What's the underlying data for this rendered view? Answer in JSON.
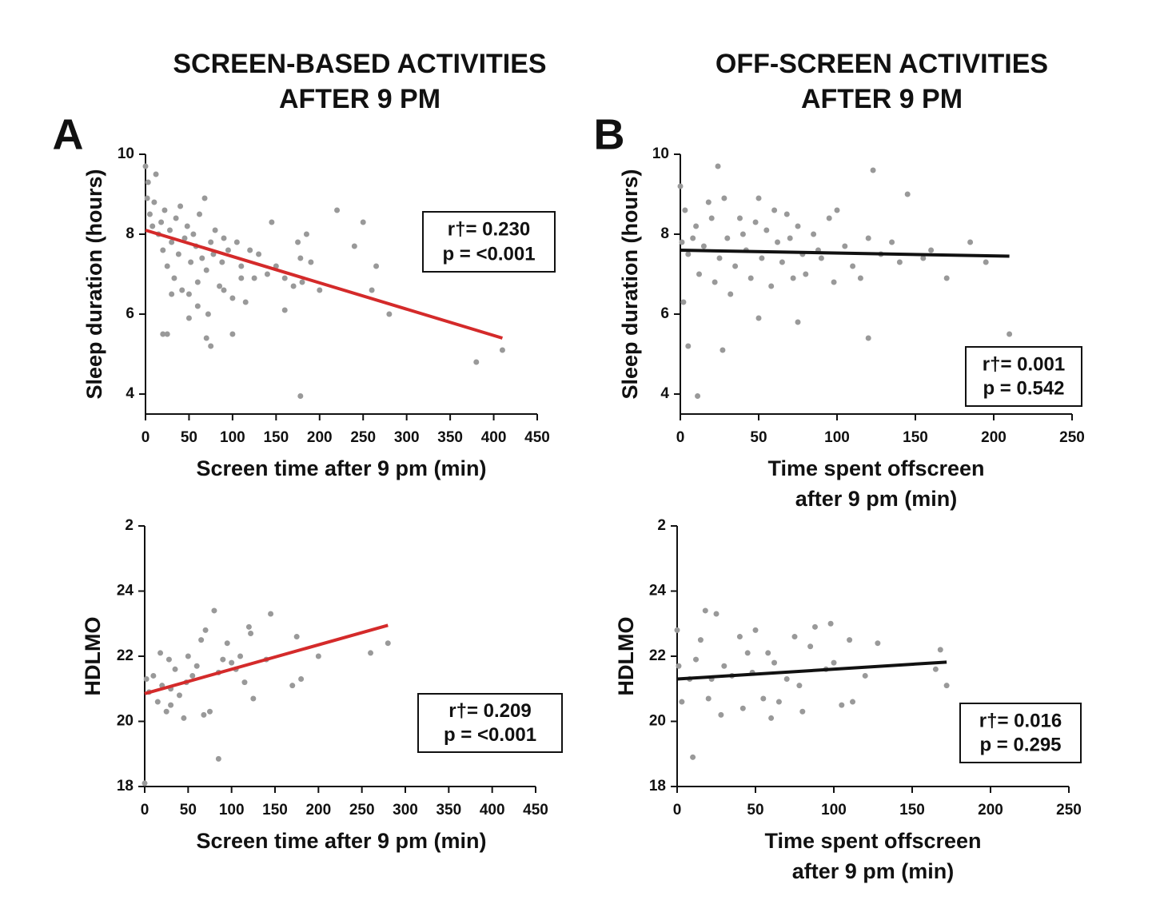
{
  "chart_data": [
    {
      "type": "scatter",
      "panel": "A",
      "title": [
        "SCREEN-BASED ACTIVITIES",
        "AFTER 9 PM"
      ],
      "xlabel": [
        "Screen time after 9 pm (min)"
      ],
      "ylabel": "Sleep duration (hours)",
      "xlim": [
        0,
        450
      ],
      "xticks": [
        0,
        50,
        100,
        150,
        200,
        250,
        300,
        350,
        400,
        450
      ],
      "ylim": [
        3.5,
        10
      ],
      "yticks": [
        4,
        6,
        8,
        10
      ],
      "color": "#999999",
      "x": [
        0,
        2,
        3,
        5,
        8,
        10,
        12,
        15,
        18,
        20,
        22,
        25,
        28,
        30,
        33,
        35,
        38,
        40,
        42,
        45,
        48,
        50,
        52,
        55,
        58,
        60,
        62,
        65,
        68,
        70,
        72,
        75,
        78,
        80,
        85,
        88,
        90,
        95,
        100,
        105,
        110,
        115,
        120,
        125,
        130,
        140,
        145,
        150,
        160,
        170,
        175,
        178,
        180,
        185,
        190,
        200,
        220,
        240,
        250,
        260,
        265,
        280,
        380,
        410,
        20,
        25,
        50,
        70,
        75,
        100,
        178,
        30,
        60,
        90,
        110,
        160
      ],
      "y": [
        9.7,
        8.9,
        9.3,
        8.5,
        8.2,
        8.8,
        9.5,
        8.0,
        8.3,
        7.6,
        8.6,
        7.2,
        8.1,
        7.8,
        6.9,
        8.4,
        7.5,
        8.7,
        6.6,
        7.9,
        8.2,
        6.5,
        7.3,
        8.0,
        7.7,
        6.8,
        8.5,
        7.4,
        8.9,
        7.1,
        6.0,
        7.8,
        7.5,
        8.1,
        6.7,
        7.3,
        7.9,
        7.6,
        6.4,
        7.8,
        7.2,
        6.3,
        7.6,
        6.9,
        7.5,
        7.0,
        8.3,
        7.2,
        6.9,
        6.7,
        7.8,
        7.4,
        6.8,
        8.0,
        7.3,
        6.6,
        8.6,
        7.7,
        8.3,
        6.6,
        7.2,
        6.0,
        4.8,
        5.1,
        5.5,
        5.5,
        5.9,
        5.4,
        5.2,
        5.5,
        3.95,
        6.5,
        6.2,
        6.6,
        6.9,
        6.1
      ],
      "trendline": {
        "x": [
          0,
          410
        ],
        "y": [
          8.1,
          5.4
        ],
        "color": "#d42a2a"
      },
      "annotations": [
        "r†= 0.230",
        "p = <0.001"
      ]
    },
    {
      "type": "scatter",
      "panel": "B",
      "title": [
        "OFF-SCREEN ACTIVITIES",
        "AFTER 9 PM"
      ],
      "xlabel": [
        "Time spent offscreen",
        "after 9 pm (min)"
      ],
      "ylabel": "Sleep duration (hours)",
      "xlim": [
        0,
        250
      ],
      "xticks": [
        0,
        50,
        100,
        150,
        200,
        250
      ],
      "ylim": [
        3.5,
        10
      ],
      "yticks": [
        4,
        6,
        8,
        10
      ],
      "color": "#999999",
      "x": [
        0,
        1,
        2,
        3,
        5,
        8,
        10,
        12,
        15,
        18,
        20,
        22,
        24,
        25,
        28,
        30,
        32,
        35,
        38,
        40,
        42,
        45,
        48,
        50,
        52,
        55,
        58,
        60,
        62,
        65,
        68,
        70,
        72,
        75,
        78,
        80,
        85,
        88,
        90,
        95,
        98,
        100,
        105,
        110,
        115,
        120,
        123,
        128,
        135,
        140,
        145,
        155,
        160,
        170,
        185,
        195,
        210,
        5,
        11,
        27,
        50,
        75,
        120
      ],
      "y": [
        9.2,
        7.8,
        6.3,
        8.6,
        7.5,
        7.9,
        8.2,
        7.0,
        7.7,
        8.8,
        8.4,
        6.8,
        9.7,
        7.4,
        8.9,
        7.9,
        6.5,
        7.2,
        8.4,
        8.0,
        7.6,
        6.9,
        8.3,
        8.9,
        7.4,
        8.1,
        6.7,
        8.6,
        7.8,
        7.3,
        8.5,
        7.9,
        6.9,
        8.2,
        7.5,
        7.0,
        8.0,
        7.6,
        7.4,
        8.4,
        6.8,
        8.6,
        7.7,
        7.2,
        6.9,
        7.9,
        9.6,
        7.5,
        7.8,
        7.3,
        9.0,
        7.4,
        7.6,
        6.9,
        7.8,
        7.3,
        5.5,
        5.2,
        3.95,
        5.1,
        5.9,
        5.8,
        5.4
      ],
      "trendline": {
        "x": [
          0,
          210
        ],
        "y": [
          7.6,
          7.45
        ],
        "color": "#111111"
      },
      "annotations": [
        "r†= 0.001",
        "p  = 0.542"
      ]
    },
    {
      "type": "scatter",
      "xlabel": [
        "Screen time after 9 pm (min)"
      ],
      "ylabel": "HDLMO",
      "xlim": [
        0,
        450
      ],
      "xticks": [
        0,
        50,
        100,
        150,
        200,
        250,
        300,
        350,
        400,
        450
      ],
      "ylim": [
        18,
        26
      ],
      "yticks": [
        18,
        20,
        22,
        24,
        {
          "value": 26,
          "label": "2"
        }
      ],
      "color": "#999999",
      "x": [
        0,
        2,
        5,
        10,
        15,
        18,
        20,
        25,
        28,
        30,
        35,
        40,
        45,
        48,
        50,
        55,
        60,
        65,
        68,
        70,
        75,
        80,
        85,
        90,
        95,
        100,
        105,
        110,
        115,
        120,
        122,
        125,
        140,
        145,
        170,
        175,
        180,
        200,
        260,
        280,
        85,
        30
      ],
      "y": [
        18.1,
        21.3,
        20.9,
        21.4,
        20.6,
        22.1,
        21.1,
        20.3,
        21.9,
        20.5,
        21.6,
        20.8,
        20.1,
        21.2,
        22.0,
        21.4,
        21.7,
        22.5,
        20.2,
        22.8,
        20.3,
        23.4,
        21.5,
        21.9,
        22.4,
        21.8,
        21.6,
        22.0,
        21.2,
        22.9,
        22.7,
        20.7,
        21.9,
        23.3,
        21.1,
        22.6,
        21.3,
        22.0,
        22.1,
        22.4,
        18.85,
        21.0
      ],
      "trendline": {
        "x": [
          0,
          280
        ],
        "y": [
          20.85,
          22.95
        ],
        "color": "#d42a2a"
      },
      "annotations": [
        "r†= 0.209",
        "p = <0.001"
      ]
    },
    {
      "type": "scatter",
      "xlabel": [
        "Time spent offscreen",
        "after 9 pm (min)"
      ],
      "ylabel": "HDLMO",
      "xlim": [
        0,
        250
      ],
      "xticks": [
        0,
        50,
        100,
        150,
        200,
        250
      ],
      "ylim": [
        18,
        26
      ],
      "yticks": [
        18,
        20,
        22,
        24,
        {
          "value": 26,
          "label": "2"
        }
      ],
      "color": "#999999",
      "x": [
        0,
        1,
        3,
        8,
        10,
        12,
        15,
        18,
        20,
        22,
        25,
        28,
        30,
        35,
        40,
        42,
        45,
        48,
        50,
        55,
        58,
        60,
        62,
        65,
        70,
        75,
        78,
        80,
        85,
        88,
        95,
        98,
        100,
        105,
        110,
        112,
        120,
        128,
        165,
        168,
        172
      ],
      "y": [
        22.8,
        21.7,
        20.6,
        21.3,
        18.9,
        21.9,
        22.5,
        23.4,
        20.7,
        21.3,
        23.3,
        20.2,
        21.7,
        21.4,
        22.6,
        20.4,
        22.1,
        21.5,
        22.8,
        20.7,
        22.1,
        20.1,
        21.8,
        20.6,
        21.3,
        22.6,
        21.1,
        20.3,
        22.3,
        22.9,
        21.6,
        23.0,
        21.8,
        20.5,
        22.5,
        20.6,
        21.4,
        22.4,
        21.6,
        22.2,
        21.1
      ],
      "trendline": {
        "x": [
          0,
          172
        ],
        "y": [
          21.3,
          21.82
        ],
        "color": "#111111"
      },
      "annotations": [
        "r†= 0.016",
        "p = 0.295"
      ]
    }
  ]
}
